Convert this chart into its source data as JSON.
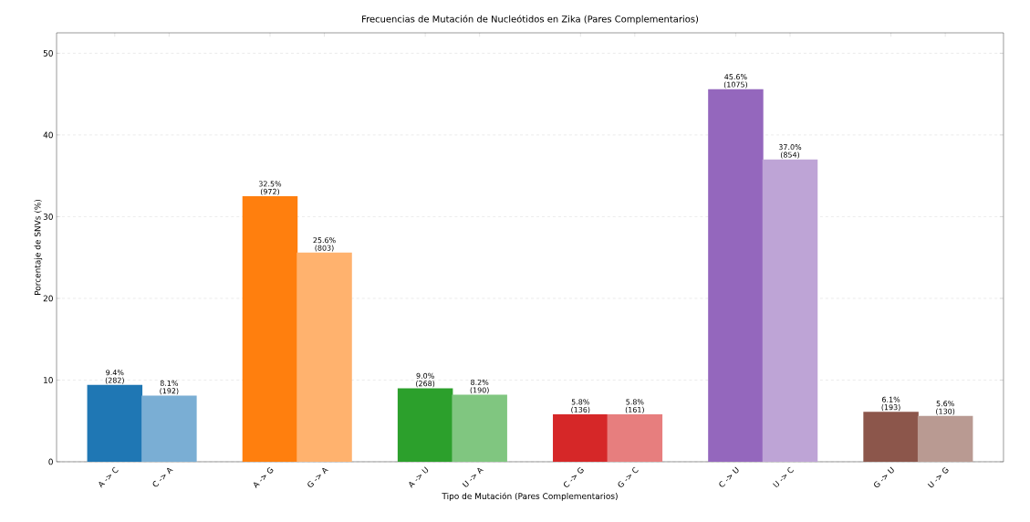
{
  "chart_data": {
    "type": "bar",
    "title": "Frecuencias de Mutación de Nucleótidos en Zika (Pares Complementarios)",
    "xlabel": "Tipo de Mutación (Pares Complementarios)",
    "ylabel": "Porcentaje de SNVs (%)",
    "categories": [
      "A -> C",
      "C -> A",
      "A -> G",
      "G -> A",
      "A -> U",
      "U -> A",
      "C -> G",
      "G -> C",
      "C -> U",
      "U -> C",
      "G -> U",
      "U -> G"
    ],
    "values": [
      9.4,
      8.1,
      32.5,
      25.6,
      9.0,
      8.2,
      5.8,
      5.8,
      45.6,
      37.0,
      6.1,
      5.6
    ],
    "colors": [
      "#1f77b4",
      "#7aaed4",
      "#ff7f0e",
      "#ffb26e",
      "#2ca02c",
      "#80c680",
      "#d62728",
      "#e77e7e",
      "#9467bd",
      "#bea4d6",
      "#8c564b",
      "#b99a92"
    ],
    "value_labels": [
      "9.4% (282)",
      "8.1% (192)",
      "32.5% (972)",
      "25.6% (803)",
      "9.0% (268)",
      "8.2% (190)",
      "5.8% (136)",
      "5.8% (161)",
      "45.6% (1075)",
      "37.0% (854)",
      "6.1% (193)",
      "5.6% (130)"
    ],
    "ylim": [
      0,
      52.5
    ],
    "yticks": [
      0,
      10,
      20,
      30,
      40,
      50
    ],
    "grid": "y"
  }
}
